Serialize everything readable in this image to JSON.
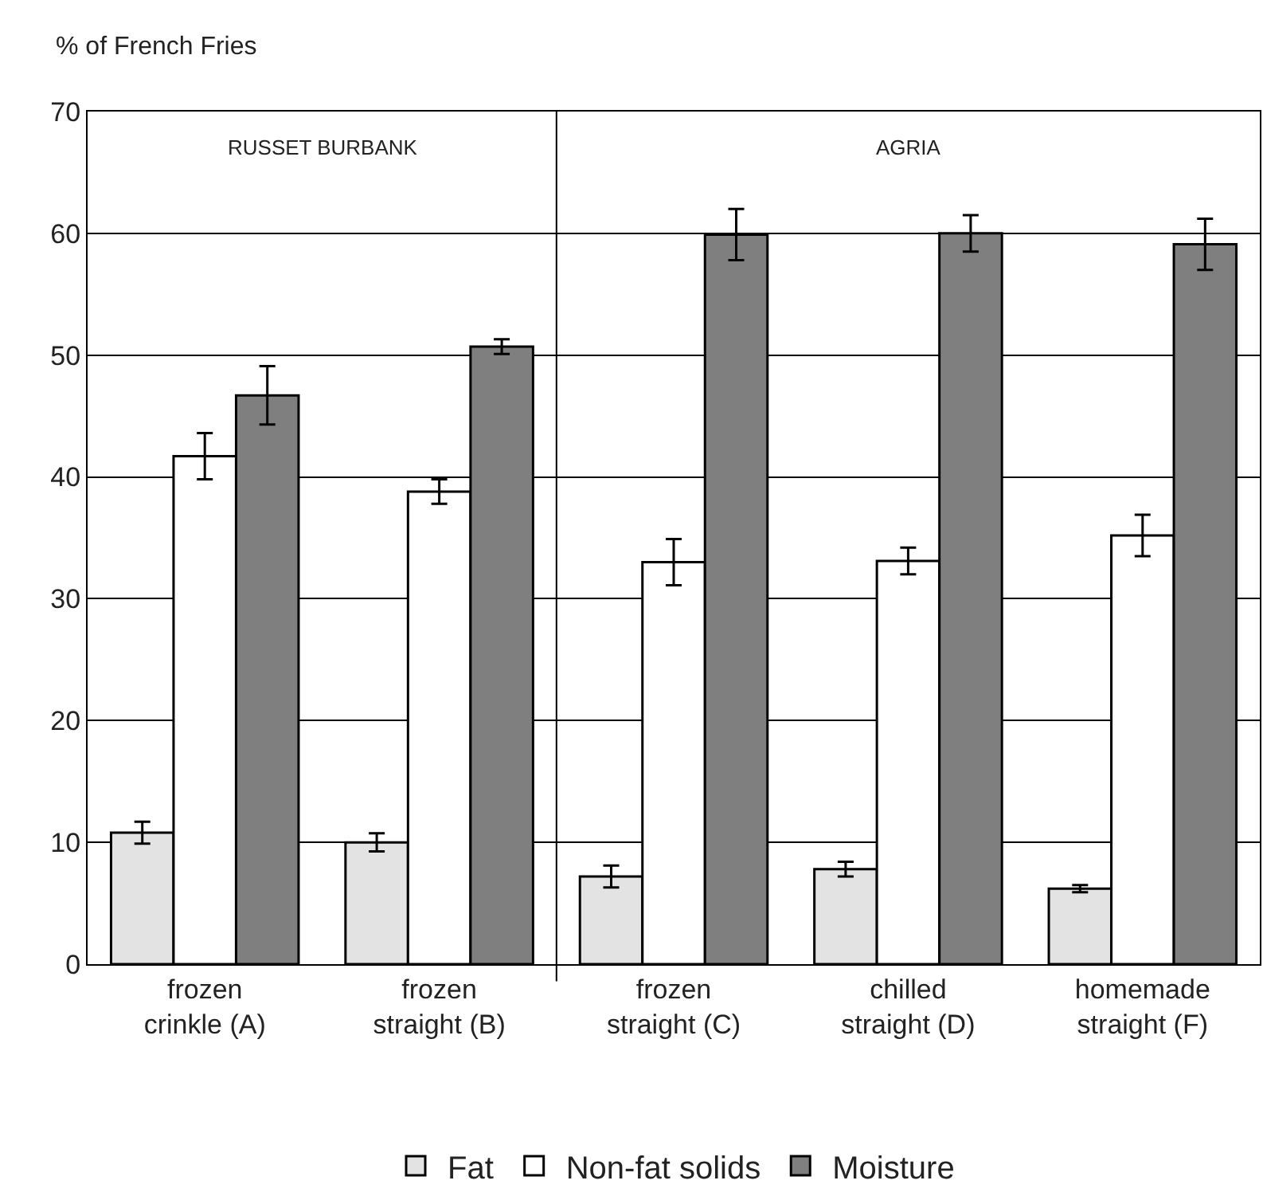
{
  "chart_data": {
    "type": "bar",
    "ylabel": "% of French Fries",
    "categories": [
      "frozen\ncrinkle (A)",
      "frozen\nstraight (B)",
      "frozen\nstraight (C)",
      "chilled\nstraight (D)",
      "homemade\nstraight (F)"
    ],
    "series": [
      {
        "name": "Fat",
        "color": "#e3e3e3",
        "values": [
          10.8,
          10.0,
          7.2,
          7.8,
          6.2
        ],
        "errors": [
          0.9,
          0.75,
          0.9,
          0.6,
          0.3
        ]
      },
      {
        "name": "Non-fat solids",
        "color": "#ffffff",
        "values": [
          41.7,
          38.8,
          33.0,
          33.1,
          35.2
        ],
        "errors": [
          1.9,
          1.0,
          1.9,
          1.1,
          1.7
        ]
      },
      {
        "name": "Moisture",
        "color": "#7f7f7f",
        "values": [
          46.7,
          50.7,
          59.9,
          60.0,
          59.1
        ],
        "errors": [
          2.4,
          0.6,
          2.1,
          1.5,
          2.1
        ]
      }
    ],
    "annotations": [
      "RUSSET BURBANK",
      "AGRIA"
    ],
    "ylim": [
      0,
      70
    ],
    "yticks": [
      0,
      10,
      20,
      30,
      40,
      50,
      60,
      70
    ],
    "grid": "y",
    "legend": "bottom"
  }
}
